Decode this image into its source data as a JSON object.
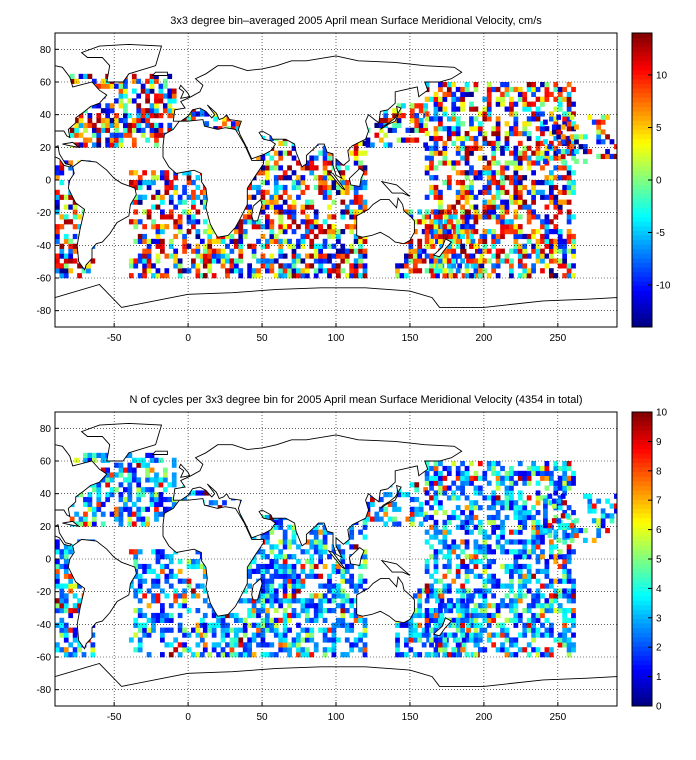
{
  "chart_data": [
    {
      "type": "heatmap",
      "title": "3x3 degree bin–averaged 2005 April mean Surface Meridional Velocity, cm/s",
      "xlim": [
        -90,
        290
      ],
      "ylim": [
        -90,
        90
      ],
      "xticks": [
        -50,
        0,
        50,
        100,
        150,
        200,
        250
      ],
      "yticks": [
        80,
        60,
        40,
        20,
        0,
        -20,
        -40,
        -60,
        -80
      ],
      "bin_size_deg": 3,
      "grid": true,
      "background": "land coastline map",
      "colorbar": {
        "vmin": -14,
        "vmax": 14,
        "ticks": [
          10,
          5,
          0,
          -5,
          -10
        ],
        "colormap": "jet"
      },
      "regions": [
        {
          "lon": [
            -80,
            -10
          ],
          "lat": [
            20,
            65
          ],
          "density": 0.55
        },
        {
          "lon": [
            -10,
            40
          ],
          "lat": [
            30,
            45
          ],
          "density": 0.45
        },
        {
          "lon": [
            -40,
            10
          ],
          "lat": [
            -60,
            5
          ],
          "density": 0.5
        },
        {
          "lon": [
            -90,
            -65
          ],
          "lat": [
            -60,
            10
          ],
          "density": 0.55
        },
        {
          "lon": [
            10,
            120
          ],
          "lat": [
            -60,
            25
          ],
          "density": 0.6
        },
        {
          "lon": [
            120,
            160
          ],
          "lat": [
            20,
            45
          ],
          "density": 0.5
        },
        {
          "lon": [
            140,
            200
          ],
          "lat": [
            -60,
            -20
          ],
          "density": 0.55
        },
        {
          "lon": [
            160,
            260
          ],
          "lat": [
            -60,
            60
          ],
          "density": 0.55
        },
        {
          "lon": [
            240,
            290
          ],
          "lat": [
            10,
            40
          ],
          "density": 0.35
        }
      ]
    },
    {
      "type": "heatmap",
      "title": "N of cycles per 3x3 degree bin for 2005 April mean Surface Meridional Velocity (4354 in total)",
      "xlim": [
        -90,
        290
      ],
      "ylim": [
        -90,
        90
      ],
      "xticks": [
        -50,
        0,
        50,
        100,
        150,
        200,
        250
      ],
      "yticks": [
        80,
        60,
        40,
        20,
        0,
        -20,
        -40,
        -60,
        -80
      ],
      "bin_size_deg": 3,
      "grid": true,
      "background": "land coastline map",
      "total": 4354,
      "colorbar": {
        "vmin": 0,
        "vmax": 10,
        "ticks": [
          10,
          9,
          8,
          7,
          6,
          5,
          4,
          3,
          2,
          1,
          0
        ],
        "colormap": "jet"
      },
      "regions": [
        {
          "lon": [
            -80,
            -10
          ],
          "lat": [
            20,
            65
          ],
          "density": 0.55
        },
        {
          "lon": [
            -10,
            40
          ],
          "lat": [
            30,
            45
          ],
          "density": 0.45
        },
        {
          "lon": [
            -40,
            10
          ],
          "lat": [
            -60,
            5
          ],
          "density": 0.5
        },
        {
          "lon": [
            -90,
            -65
          ],
          "lat": [
            -60,
            10
          ],
          "density": 0.55
        },
        {
          "lon": [
            10,
            120
          ],
          "lat": [
            -60,
            25
          ],
          "density": 0.6
        },
        {
          "lon": [
            120,
            160
          ],
          "lat": [
            20,
            45
          ],
          "density": 0.5
        },
        {
          "lon": [
            140,
            200
          ],
          "lat": [
            -60,
            -20
          ],
          "density": 0.55
        },
        {
          "lon": [
            160,
            260
          ],
          "lat": [
            -60,
            60
          ],
          "density": 0.55
        },
        {
          "lon": [
            240,
            290
          ],
          "lat": [
            10,
            40
          ],
          "density": 0.35
        }
      ]
    }
  ]
}
